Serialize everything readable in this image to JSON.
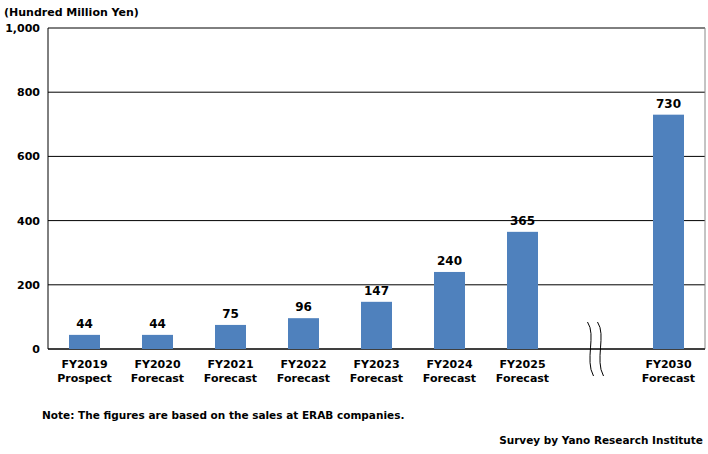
{
  "chart_data": {
    "type": "bar",
    "ylabel": "(Hundred Million Yen)",
    "categories": [
      "FY2019 Prospect",
      "FY2020 Forecast",
      "FY2021 Forecast",
      "FY2022 Forecast",
      "FY2023 Forecast",
      "FY2024 Forecast",
      "FY2025 Forecast",
      null,
      "FY2030 Forecast"
    ],
    "values": [
      44,
      44,
      75,
      96,
      147,
      240,
      365,
      null,
      730
    ],
    "color": "#4f81bd",
    "ylim": [
      0,
      1000
    ],
    "yticks": [
      0,
      200,
      400,
      600,
      800,
      {
        "value": 1000,
        "label": "1,000"
      }
    ],
    "grid": true,
    "data_labels": true,
    "note": "Note: The figures are based on the sales at ERAB companies.",
    "source": "Survey by Yano Research Institute"
  }
}
